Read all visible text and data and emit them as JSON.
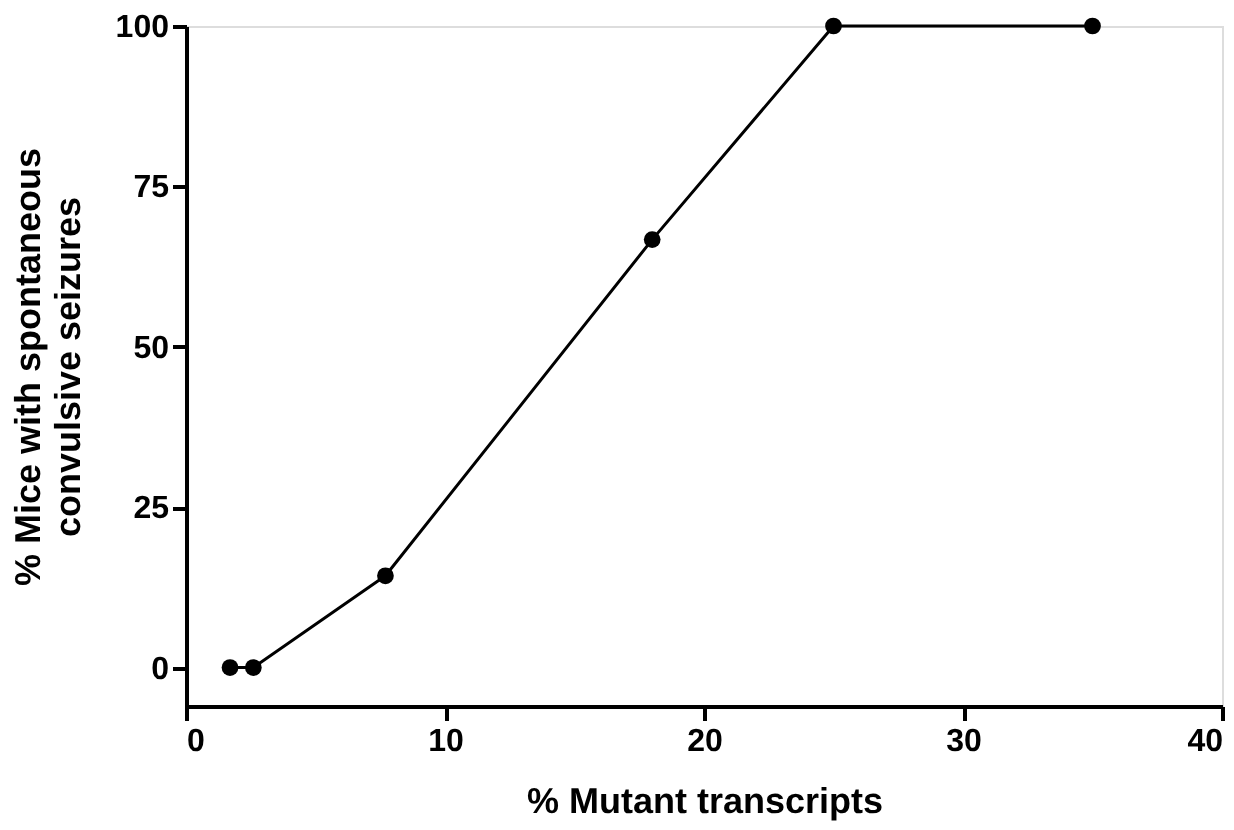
{
  "chart_data": {
    "type": "line",
    "xlabel": "% Mutant transcripts",
    "ylabel": "% Mice with spontaneous\nconvulsive seizures",
    "x": [
      1.7,
      2.6,
      7.7,
      18,
      25,
      35
    ],
    "series": [
      {
        "color": "#000000",
        "values": [
          0,
          0,
          14.3,
          66.7,
          100,
          100
        ]
      }
    ],
    "xlim": [
      0,
      40
    ],
    "xticks": [
      0,
      10,
      20,
      30,
      40
    ],
    "ylim": [
      -6,
      100
    ],
    "yticks": [
      0,
      25,
      50,
      75,
      100
    ],
    "grid": false,
    "legend": false,
    "marker": "circle",
    "line_style": "solid"
  }
}
